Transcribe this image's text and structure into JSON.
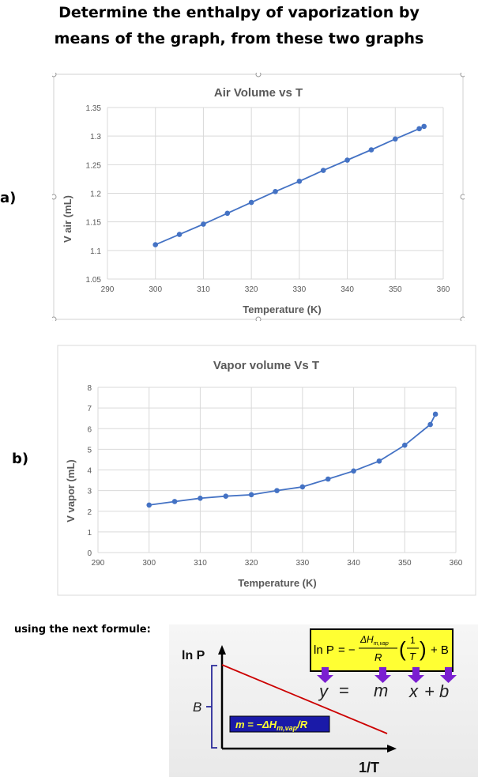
{
  "title": {
    "line1": "Determine the enthalpy of vaporization by",
    "line2": "means of the graph, from these two graphs"
  },
  "labels": {
    "a": "a)",
    "b": "b)",
    "formula_intro": "using the next formule:"
  },
  "chart_data": [
    {
      "type": "line",
      "title": "Air Volume vs T",
      "xlabel": "Temperature (K)",
      "ylabel": "V air (mL)",
      "xlim": [
        290,
        360
      ],
      "ylim": [
        1.05,
        1.35
      ],
      "xticks": [
        290,
        300,
        310,
        320,
        330,
        340,
        350,
        360
      ],
      "yticks": [
        1.05,
        1.1,
        1.15,
        1.2,
        1.25,
        1.3,
        1.35
      ],
      "ytick_labels": [
        "1.05",
        "1.1",
        "1.15",
        "1.2",
        "1.25",
        "1.3",
        "1.35"
      ],
      "grid": true,
      "color": "#4472c4",
      "x": [
        300,
        305,
        310,
        315,
        320,
        325,
        330,
        335,
        340,
        345,
        350,
        355,
        356
      ],
      "y": [
        1.11,
        1.128,
        1.146,
        1.165,
        1.184,
        1.203,
        1.221,
        1.24,
        1.258,
        1.276,
        1.295,
        1.313,
        1.317
      ]
    },
    {
      "type": "line",
      "title": "Vapor volume Vs T",
      "xlabel": "Temperature (K)",
      "ylabel": "V vapor (mL)",
      "xlim": [
        290,
        360
      ],
      "ylim": [
        0,
        8
      ],
      "xticks": [
        290,
        300,
        310,
        320,
        330,
        340,
        350,
        360
      ],
      "yticks": [
        0,
        1,
        2,
        3,
        4,
        5,
        6,
        7,
        8
      ],
      "ytick_labels": [
        "0",
        "1",
        "2",
        "3",
        "4",
        "5",
        "6",
        "7",
        "8"
      ],
      "grid": true,
      "color": "#4472c4",
      "x": [
        300,
        305,
        310,
        315,
        320,
        325,
        330,
        335,
        340,
        345,
        350,
        355,
        356
      ],
      "y": [
        2.3,
        2.47,
        2.63,
        2.73,
        2.8,
        3.0,
        3.18,
        3.56,
        3.95,
        4.43,
        5.2,
        6.2,
        6.7
      ]
    }
  ],
  "diagram": {
    "y_axis_label": "ln P",
    "x_axis_label": "1/T",
    "intercept_label": "B",
    "equation": "ln P = −(ΔH_m,vap / R)(1/T) + B",
    "eq_lnP": "ln P",
    "eq_equals_minus": "= −",
    "eq_numerator": "ΔH",
    "eq_numerator_sub": "m,vap",
    "eq_denominator": "R",
    "eq_inner_num": "1",
    "eq_inner_den": "T",
    "eq_plus_b": "+ B",
    "mapping": [
      "y",
      "=",
      "m",
      "x",
      "+ b"
    ],
    "slope_label": "m = −ΔH",
    "slope_label_sub": "m,vap",
    "slope_label_tail": "/R",
    "line_color": "#cc0000",
    "box_color": "#ffff33",
    "arrow_color": "#7b1fd1",
    "slope_box_color": "#1a1aa8"
  }
}
